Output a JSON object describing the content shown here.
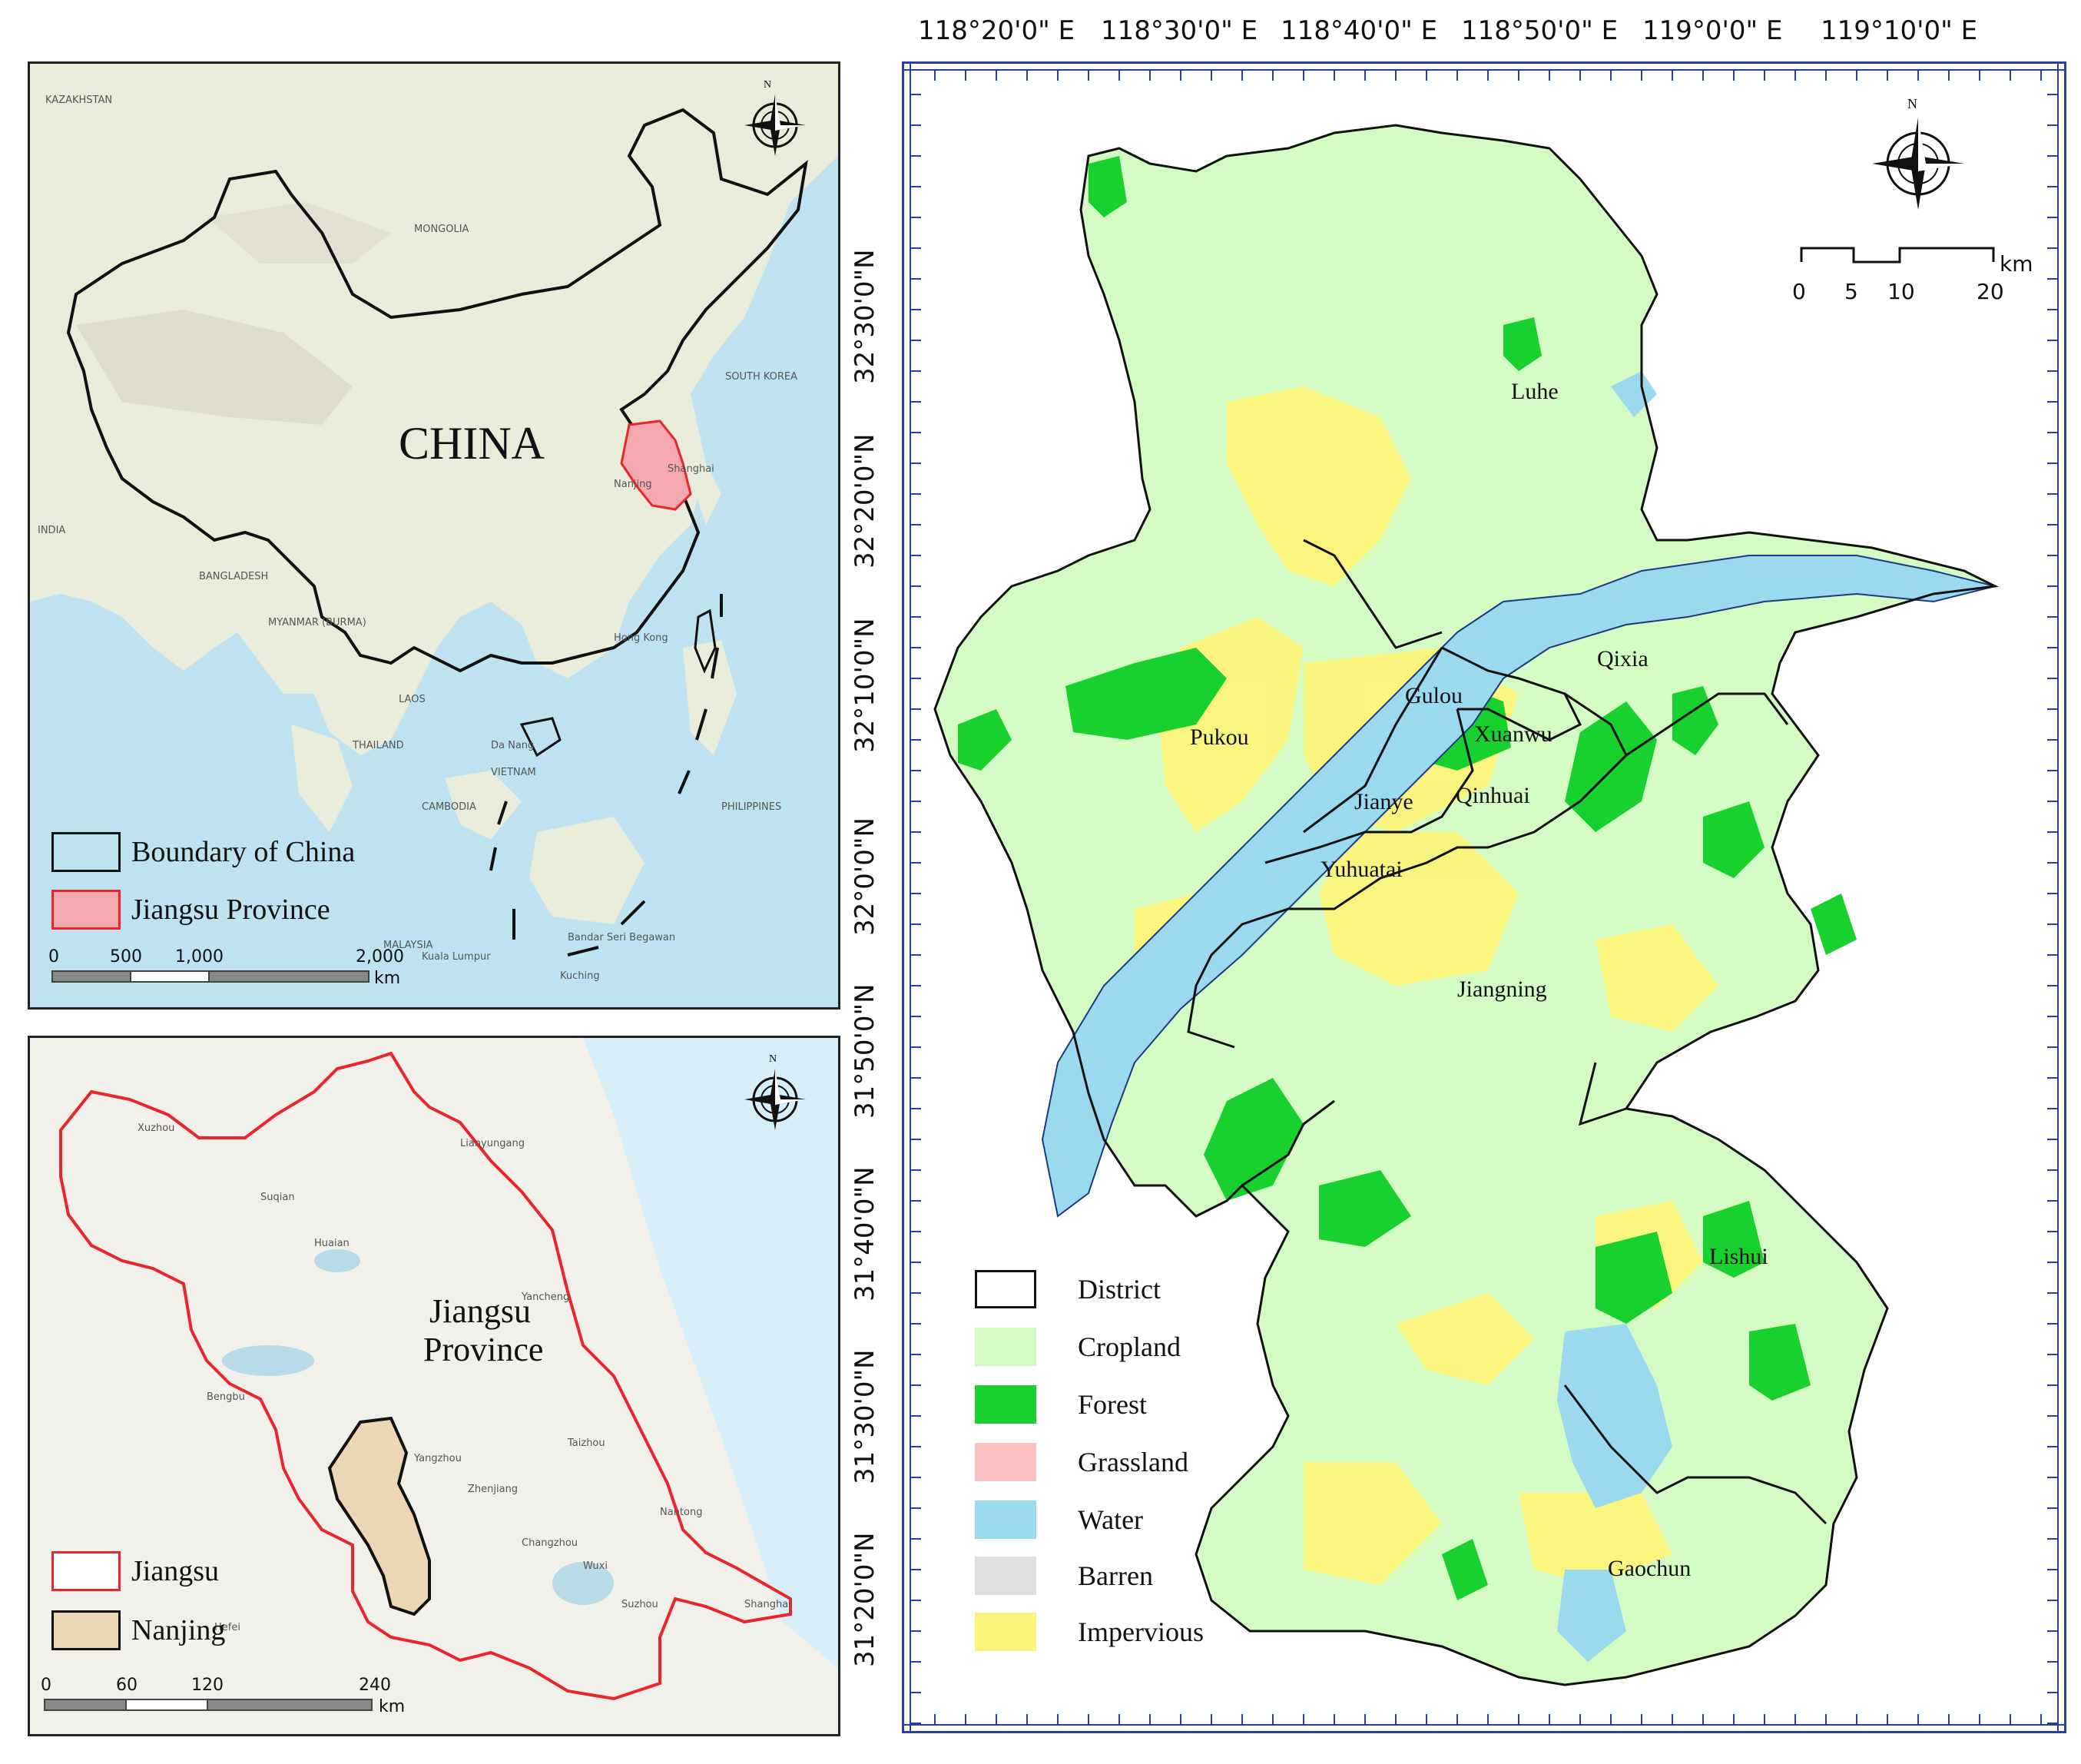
{
  "china_map": {
    "country_label": "CHINA",
    "places": [
      "KAZAKHSTAN",
      "MONGOLIA",
      "INDIA",
      "BANGLADESH",
      "MYANMAR (BURMA)",
      "THAILAND",
      "LAOS",
      "VIETNAM",
      "CAMBODIA",
      "PHILIPPINES",
      "MALAYSIA",
      "SOUTH KOREA",
      "Hong Kong",
      "Kuala Lumpur",
      "Bandar Seri Begawan",
      "Da Nang",
      "Kuching",
      "Nanjing",
      "Shanghai"
    ],
    "legend": [
      {
        "label": "Boundary of China",
        "fill": "#cfe9f3",
        "stroke": "#111111"
      },
      {
        "label": "Jiangsu Province",
        "fill": "#f4a9ae",
        "stroke": "#e8262c"
      }
    ],
    "scale": {
      "ticks": [
        "0",
        "500",
        "1,000",
        "2,000"
      ],
      "unit": "km"
    },
    "north_label": "N",
    "colors": {
      "boundary": "#111111",
      "jiangsu": "#f4a9ae",
      "jiangsu_border": "#e8262c",
      "land": "#e9ecd9",
      "sea": "#bfe2f1"
    }
  },
  "jiangsu_map": {
    "province_label_1": "Jiangsu",
    "province_label_2": "Province",
    "places": [
      "Xuzhou",
      "Huaian",
      "Yancheng",
      "Yangzhou",
      "Taizhou",
      "Nantong",
      "Changzhou",
      "Wuxi",
      "Suzhou",
      "Shanghai",
      "Zhenjiang",
      "Lianyungang",
      "Suqian",
      "Hefei",
      "Bengbu"
    ],
    "legend": [
      {
        "label": "Jiangsu",
        "fill": "#ffffff",
        "stroke": "#e8262c"
      },
      {
        "label": "Nanjing",
        "fill": "#ecd7b5",
        "stroke": "#111111"
      }
    ],
    "scale": {
      "ticks": [
        "0",
        "60",
        "120",
        "240"
      ],
      "unit": "km"
    },
    "north_label": "N",
    "colors": {
      "jiangsu_border": "#e8262c",
      "nanjing": "#ecd7b5"
    }
  },
  "nanjing_map": {
    "top_coords": [
      "118°20'0\" E",
      "118°30'0\" E",
      "118°40'0\" E",
      "118°50'0\" E",
      "119°0'0\" E",
      "119°10'0\" E"
    ],
    "left_coords": [
      "32°30'0\"N",
      "32°20'0\"N",
      "32°10'0\"N",
      "32°0'0\"N",
      "31°50'0\"N",
      "31°40'0\"N",
      "31°30'0\"N",
      "31°20'0\"N"
    ],
    "districts": [
      "Luhe",
      "Qixia",
      "Pukou",
      "Gulou",
      "Xuanwu",
      "Jianye",
      "Qinhuai",
      "Yuhuatai",
      "Jiangning",
      "Lishui",
      "Gaochun"
    ],
    "legend": [
      {
        "label": "District",
        "fill": "#ffffff",
        "stroke": "#111111"
      },
      {
        "label": "Cropland",
        "fill": "#d4fbc4",
        "stroke": "#d4fbc4"
      },
      {
        "label": "Forest",
        "fill": "#18d12f",
        "stroke": "#18d12f"
      },
      {
        "label": "Grassland",
        "fill": "#fbc0c0",
        "stroke": "#fbc0c0"
      },
      {
        "label": "Water",
        "fill": "#9bd9ee",
        "stroke": "#9bd9ee"
      },
      {
        "label": "Barren",
        "fill": "#dedede",
        "stroke": "#dedede"
      },
      {
        "label": "Impervious",
        "fill": "#fbf47a",
        "stroke": "#fbf47a"
      }
    ],
    "scale": {
      "ticks": [
        "0",
        "5",
        "10",
        "20"
      ],
      "unit": "km"
    },
    "north_label": "N",
    "colors": {
      "cropland": "#d4fbc4",
      "forest": "#18d12f",
      "water": "#9bd9ee",
      "impervious": "#fbf47a",
      "district_border": "#111111"
    }
  }
}
